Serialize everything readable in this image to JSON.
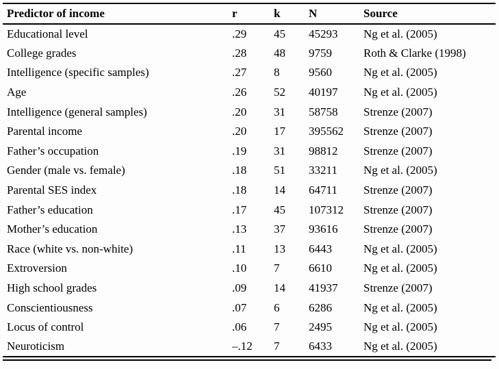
{
  "page": {
    "background_color": "#fdfdfd",
    "rule_color": "#000000",
    "text_color": "#000000"
  },
  "table": {
    "columns": [
      {
        "key": "predictor",
        "label": "Predictor of income"
      },
      {
        "key": "r",
        "label": "r"
      },
      {
        "key": "k",
        "label": "k"
      },
      {
        "key": "n",
        "label": "N"
      },
      {
        "key": "source",
        "label": "Source"
      }
    ],
    "rows": [
      {
        "predictor": "Educational level",
        "r": ".29",
        "k": "45",
        "n": "45293",
        "source": "Ng et al. (2005)"
      },
      {
        "predictor": "College grades",
        "r": ".28",
        "k": "48",
        "n": "9759",
        "source": "Roth & Clarke (1998)"
      },
      {
        "predictor": "Intelligence (specific samples)",
        "r": ".27",
        "k": "8",
        "n": "9560",
        "source": "Ng et al. (2005)"
      },
      {
        "predictor": "Age",
        "r": ".26",
        "k": "52",
        "n": "40197",
        "source": "Ng et al. (2005)"
      },
      {
        "predictor": "Intelligence (general samples)",
        "r": ".20",
        "k": "31",
        "n": "58758",
        "source": "Strenze (2007)"
      },
      {
        "predictor": "Parental income",
        "r": ".20",
        "k": "17",
        "n": "395562",
        "source": "Strenze (2007)"
      },
      {
        "predictor": "Father’s occupation",
        "r": ".19",
        "k": "31",
        "n": "98812",
        "source": "Strenze (2007)"
      },
      {
        "predictor": "Gender (male vs. female)",
        "r": ".18",
        "k": "51",
        "n": "33211",
        "source": "Ng et al. (2005)"
      },
      {
        "predictor": "Parental SES index",
        "r": ".18",
        "k": "14",
        "n": "64711",
        "source": "Strenze (2007)"
      },
      {
        "predictor": "Father’s education",
        "r": ".17",
        "k": "45",
        "n": "107312",
        "source": "Strenze (2007)"
      },
      {
        "predictor": "Mother’s education",
        "r": ".13",
        "k": "37",
        "n": "93616",
        "source": "Strenze (2007)"
      },
      {
        "predictor": "Race (white vs. non-white)",
        "r": ".11",
        "k": "13",
        "n": "6443",
        "source": "Ng et al. (2005)"
      },
      {
        "predictor": "Extroversion",
        "r": ".10",
        "k": "7",
        "n": "6610",
        "source": "Ng et al. (2005)"
      },
      {
        "predictor": "High school grades",
        "r": ".09",
        "k": "14",
        "n": "41937",
        "source": "Strenze (2007)"
      },
      {
        "predictor": "Conscientiousness",
        "r": ".07",
        "k": "6",
        "n": "6286",
        "source": "Ng et al. (2005)"
      },
      {
        "predictor": "Locus of control",
        "r": ".06",
        "k": "7",
        "n": "2495",
        "source": "Ng et al. (2005)"
      },
      {
        "predictor": "Neuroticism",
        "r": "–.12",
        "k": "7",
        "n": "6433",
        "source": "Ng et al. (2005)"
      }
    ]
  }
}
